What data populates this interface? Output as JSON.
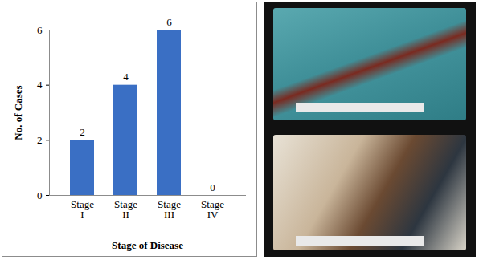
{
  "chart_data": {
    "type": "bar",
    "categories": [
      "Stage I",
      "Stage II",
      "Stage III",
      "Stage IV"
    ],
    "values": [
      2,
      4,
      6,
      0
    ],
    "color": "#3a6fc4",
    "x_label": "Stage of Disease",
    "y_label": "No. of Cases",
    "ylim": [
      0,
      6
    ],
    "yticks": [
      0,
      2,
      4,
      6
    ],
    "grid": false,
    "data_labels": true
  }
}
